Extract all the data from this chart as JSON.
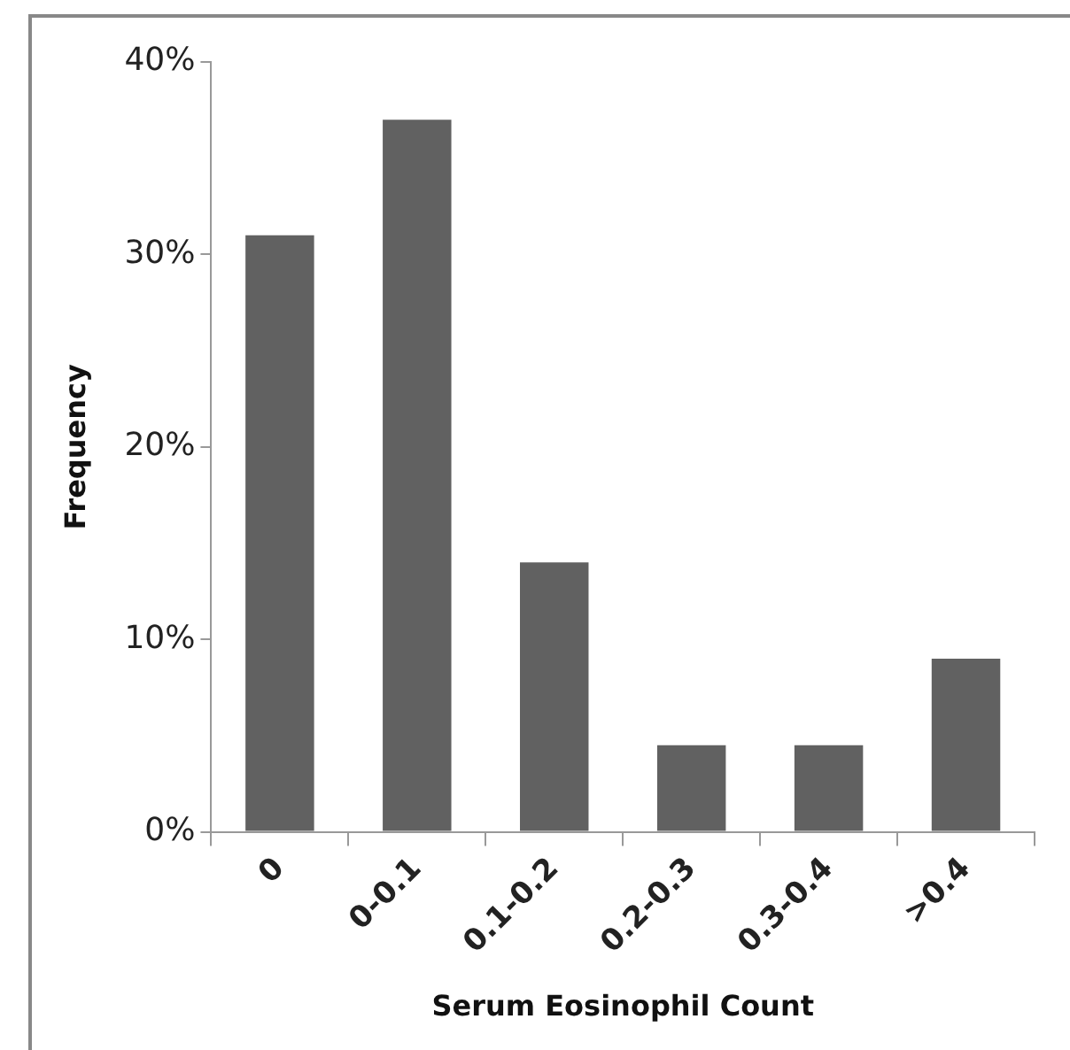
{
  "chart_data": {
    "type": "bar",
    "xlabel": "Serum Eosinophil Count",
    "ylabel": "Frequency",
    "categories": [
      "0",
      "0-0.1",
      "0.1-0.2",
      "0.2-0.3",
      "0.3-0.4",
      ">0.4"
    ],
    "values": [
      31,
      37,
      14,
      4.5,
      4.5,
      9
    ],
    "color": "#616161",
    "ylim": [
      0,
      40
    ],
    "yticks": [
      {
        "value": 0,
        "label": "0%"
      },
      {
        "value": 10,
        "label": "10%"
      },
      {
        "value": 20,
        "label": "20%"
      },
      {
        "value": 30,
        "label": "30%"
      },
      {
        "value": 40,
        "label": "40%"
      }
    ],
    "grid": false,
    "legend": false
  }
}
